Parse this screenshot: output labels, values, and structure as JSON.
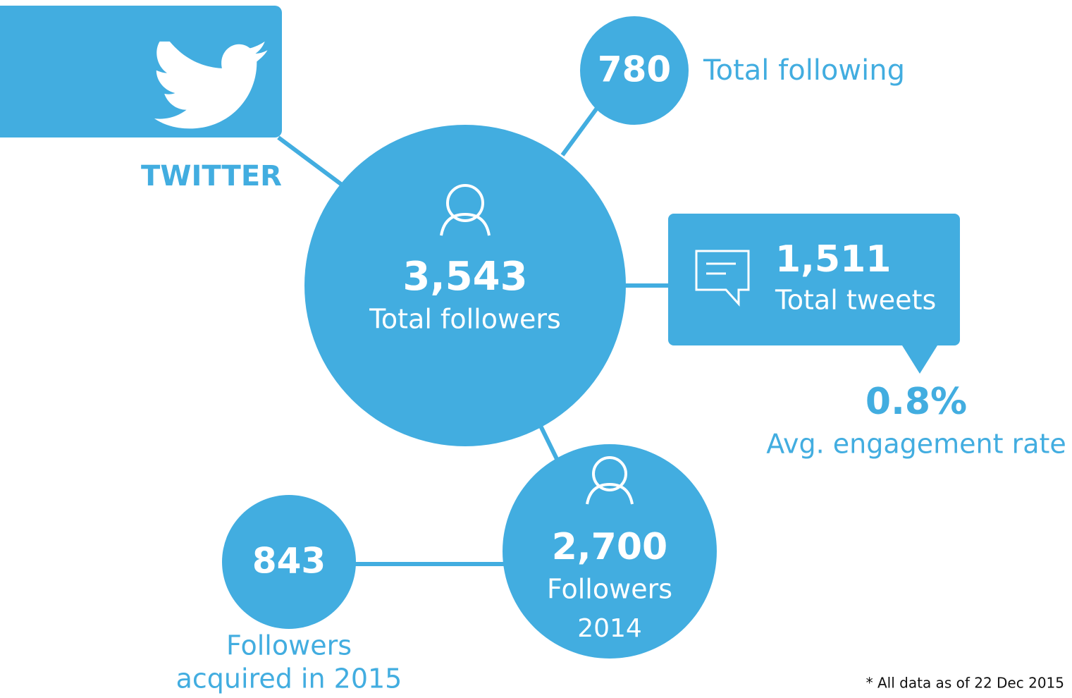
{
  "header": {
    "title": "TWITTER"
  },
  "following": {
    "value": "780",
    "label": "Total following"
  },
  "followers": {
    "value": "3,543",
    "label": "Total followers"
  },
  "tweets": {
    "value": "1,511",
    "label": "Total tweets"
  },
  "engagement": {
    "value": "0.8%",
    "label": "Avg. engagement rate"
  },
  "followers_2014": {
    "value": "2,700",
    "label": "Followers",
    "year": "2014"
  },
  "acquired": {
    "value": "843",
    "label_line1": "Followers",
    "label_line2": "acquired in 2015"
  },
  "footnote": "* All data as of 22 Dec 2015"
}
